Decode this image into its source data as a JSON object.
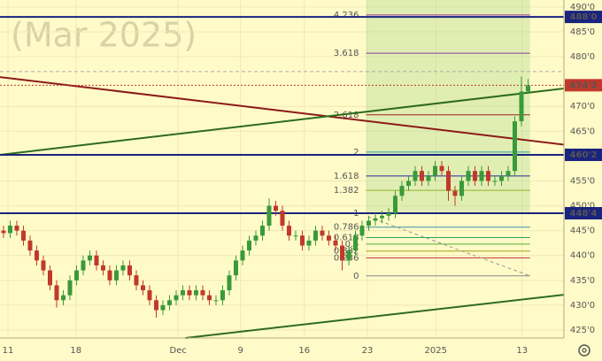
{
  "chart_data": {
    "type": "candlestick",
    "watermark": "(Mar 2025)",
    "xlim": [
      -0.53,
      84.4
    ],
    "ylim": [
      423.4,
      491.4
    ],
    "grid": true,
    "up_color": "#3a9a3a",
    "down_color": "#c0392b",
    "xticks": [
      {
        "value": 0.67,
        "label": "11"
      },
      {
        "value": 10.9,
        "label": "18"
      },
      {
        "value": 26.3,
        "label": "Dec"
      },
      {
        "value": 35.7,
        "label": "9"
      },
      {
        "value": 45.3,
        "label": "16"
      },
      {
        "value": 54.8,
        "label": "23"
      },
      {
        "value": 65.1,
        "label": "2025"
      },
      {
        "value": 78.1,
        "label": "13"
      }
    ],
    "yticks": [
      {
        "value": 490,
        "label": "490'0"
      },
      {
        "value": 485,
        "label": "485'0"
      },
      {
        "value": 480,
        "label": "480'0"
      },
      {
        "value": 470,
        "label": "470'0"
      },
      {
        "value": 465,
        "label": "465'0"
      },
      {
        "value": 455,
        "label": "455'0"
      },
      {
        "value": 450,
        "label": "450'0"
      },
      {
        "value": 445,
        "label": "445'0"
      },
      {
        "value": 440,
        "label": "440'0"
      },
      {
        "value": 435,
        "label": "435'0"
      },
      {
        "value": 430,
        "label": "430'0"
      },
      {
        "value": 425,
        "label": "425'0"
      }
    ],
    "open": [
      445,
      444.5,
      446,
      445,
      443,
      441,
      439,
      437,
      434,
      431,
      432,
      435,
      437,
      439,
      440,
      438,
      437,
      435,
      437,
      438,
      436,
      434,
      433,
      431,
      429,
      430,
      431,
      432,
      433,
      432,
      433,
      432,
      431,
      431,
      433,
      436,
      439,
      441,
      443,
      444,
      446,
      450,
      449,
      446,
      444,
      444,
      442,
      443,
      445,
      444,
      443,
      442,
      439,
      441,
      444,
      446,
      447,
      447.5,
      448,
      448.5,
      452,
      454,
      455,
      457,
      455,
      456,
      458,
      457,
      453,
      452,
      455,
      457,
      455,
      457,
      455,
      455,
      456,
      457,
      467,
      473
    ],
    "high": [
      446,
      447,
      447,
      446,
      444,
      442,
      440,
      438,
      435,
      433,
      436,
      438,
      440,
      441,
      441,
      439,
      438,
      438,
      439,
      439,
      437,
      435,
      434,
      432,
      431,
      432,
      433,
      434,
      434,
      434,
      434,
      433,
      432,
      434,
      437,
      440,
      442,
      444,
      445,
      447,
      451.5,
      451,
      450,
      447,
      445,
      445,
      444,
      446,
      446,
      445,
      444,
      443,
      442,
      445,
      447,
      448,
      448.5,
      449,
      449.5,
      453,
      455,
      456,
      458,
      458,
      457,
      459,
      459,
      458,
      454,
      456,
      458,
      458,
      458,
      458,
      456,
      457,
      458,
      468,
      476,
      475.5
    ],
    "low": [
      443.5,
      443.5,
      444,
      442,
      440,
      438,
      436,
      433,
      429.5,
      430,
      431,
      434,
      436,
      438,
      437,
      436,
      434,
      434,
      436,
      435,
      433,
      432,
      430,
      427.5,
      428,
      429,
      430,
      431,
      431,
      431,
      431,
      430,
      430,
      430,
      432,
      435,
      438,
      440,
      442,
      443,
      445,
      448,
      445,
      443,
      443,
      441,
      441,
      442,
      443,
      442,
      441,
      437,
      438,
      440,
      443,
      445,
      446,
      446.5,
      447,
      447.5,
      451,
      453,
      454,
      454,
      454,
      455,
      456,
      451,
      450,
      451,
      454,
      454,
      454,
      454,
      454,
      454,
      455,
      456,
      466,
      472.5
    ],
    "close": [
      444.5,
      446,
      445,
      443,
      441,
      439,
      437,
      434,
      431,
      432,
      435,
      437,
      439,
      440,
      438,
      437,
      435,
      437,
      438,
      436,
      434,
      433,
      431,
      429,
      430,
      431,
      432,
      433,
      432,
      433,
      432,
      431,
      431,
      433,
      436,
      439,
      441,
      443,
      444,
      446,
      450,
      449,
      446,
      444,
      444,
      442,
      443,
      445,
      444,
      443,
      442,
      439,
      441,
      444,
      446,
      447,
      447.5,
      448,
      448.5,
      452,
      454,
      455,
      457,
      455,
      456,
      458,
      457,
      453,
      452,
      455,
      457,
      455,
      457,
      455,
      455,
      456,
      457,
      467,
      473,
      474.25
    ],
    "fib": {
      "from": 54.6,
      "to": 79.3,
      "levels": [
        {
          "label": "4.236",
          "price": 488.4,
          "color": "#a03ca0"
        },
        {
          "label": "3.618",
          "price": 480.7,
          "color": "#8b3a9b"
        },
        {
          "label": "2.618",
          "price": 468.3,
          "color": "#a02020"
        },
        {
          "label": "2",
          "price": 460.8,
          "color": "#20a0a0"
        },
        {
          "label": "1.618",
          "price": 456.0,
          "color": "#2a2aa0"
        },
        {
          "label": "1.382",
          "price": 453.1,
          "color": "#8fb020"
        },
        {
          "label": "1",
          "price": 448.5,
          "color": "#888888"
        },
        {
          "label": "0.786",
          "price": 445.7,
          "color": "#3a8fb0"
        },
        {
          "label": "0.618",
          "price": 443.6,
          "color": "#30a060"
        },
        {
          "label": "0.5",
          "price": 442.3,
          "color": "#50b030"
        },
        {
          "label": "0.382",
          "price": 440.9,
          "color": "#a0a020"
        },
        {
          "label": "0.236",
          "price": 439.5,
          "color": "#c04040"
        },
        {
          "label": "0",
          "price": 435.9,
          "color": "#888888"
        }
      ]
    },
    "lines": [
      {
        "from": [
          -0.53,
          475.9
        ],
        "to": [
          84.4,
          462.3
        ],
        "color": "#8b1a1a",
        "dashed": false
      },
      {
        "from": [
          -0.53,
          460.25
        ],
        "to": [
          84.4,
          473.6
        ],
        "color": "#2e6b1e",
        "dashed": false
      },
      {
        "from": [
          27.4,
          423.4
        ],
        "to": [
          84.4,
          432.1
        ],
        "color": "#2e6b1e",
        "dashed": false
      },
      {
        "from": [
          54.9,
          447.8
        ],
        "to": [
          79.3,
          435.9
        ],
        "color": "#999999",
        "dashed": true
      },
      {
        "from": [
          -0.53,
          477.0
        ],
        "to": [
          84.4,
          477.0
        ],
        "color": "#aaaaaa",
        "dashed": true
      }
    ],
    "badges": [
      {
        "price": 488,
        "label": "488'0",
        "color": "#1a237e",
        "dotted": false
      },
      {
        "price": 474.25,
        "label": "474'2",
        "color": "#c0392b",
        "dotted": true
      },
      {
        "price": 460.25,
        "label": "460'2",
        "color": "#1a237e",
        "dotted": false
      },
      {
        "price": 448.5,
        "label": "448'4",
        "color": "#1a237e",
        "dotted": false
      }
    ]
  }
}
